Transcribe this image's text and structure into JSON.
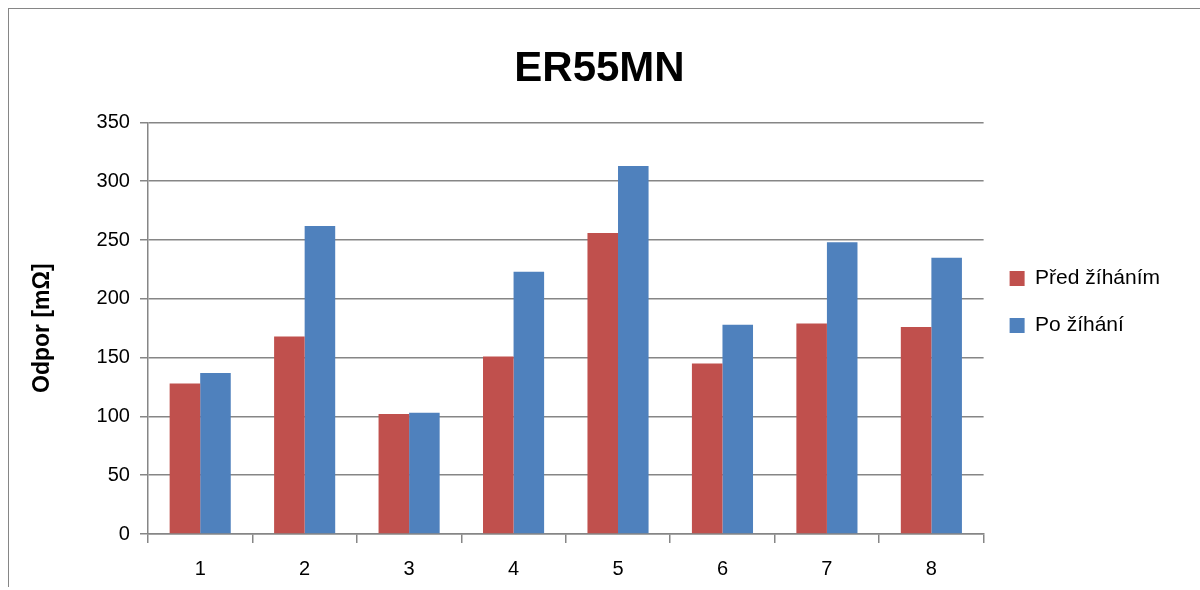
{
  "chart_data": {
    "type": "bar",
    "title": "ER55MN",
    "ylabel": "Odpor [mΩ]",
    "categories": [
      "1",
      "2",
      "3",
      "4",
      "5",
      "6",
      "7",
      "8"
    ],
    "series": [
      {
        "name": "Před žíháním",
        "color": "#c0504d",
        "values": [
          128,
          168,
          102,
          151,
          256,
          145,
          179,
          176
        ]
      },
      {
        "name": "Po žíhání",
        "color": "#4f81bd",
        "values": [
          137,
          262,
          103,
          223,
          313,
          178,
          248,
          235
        ]
      }
    ],
    "ylim": [
      0,
      350
    ],
    "yticks": [
      0,
      50,
      100,
      150,
      200,
      250,
      300,
      350
    ],
    "grid": "y",
    "legend": "right"
  }
}
